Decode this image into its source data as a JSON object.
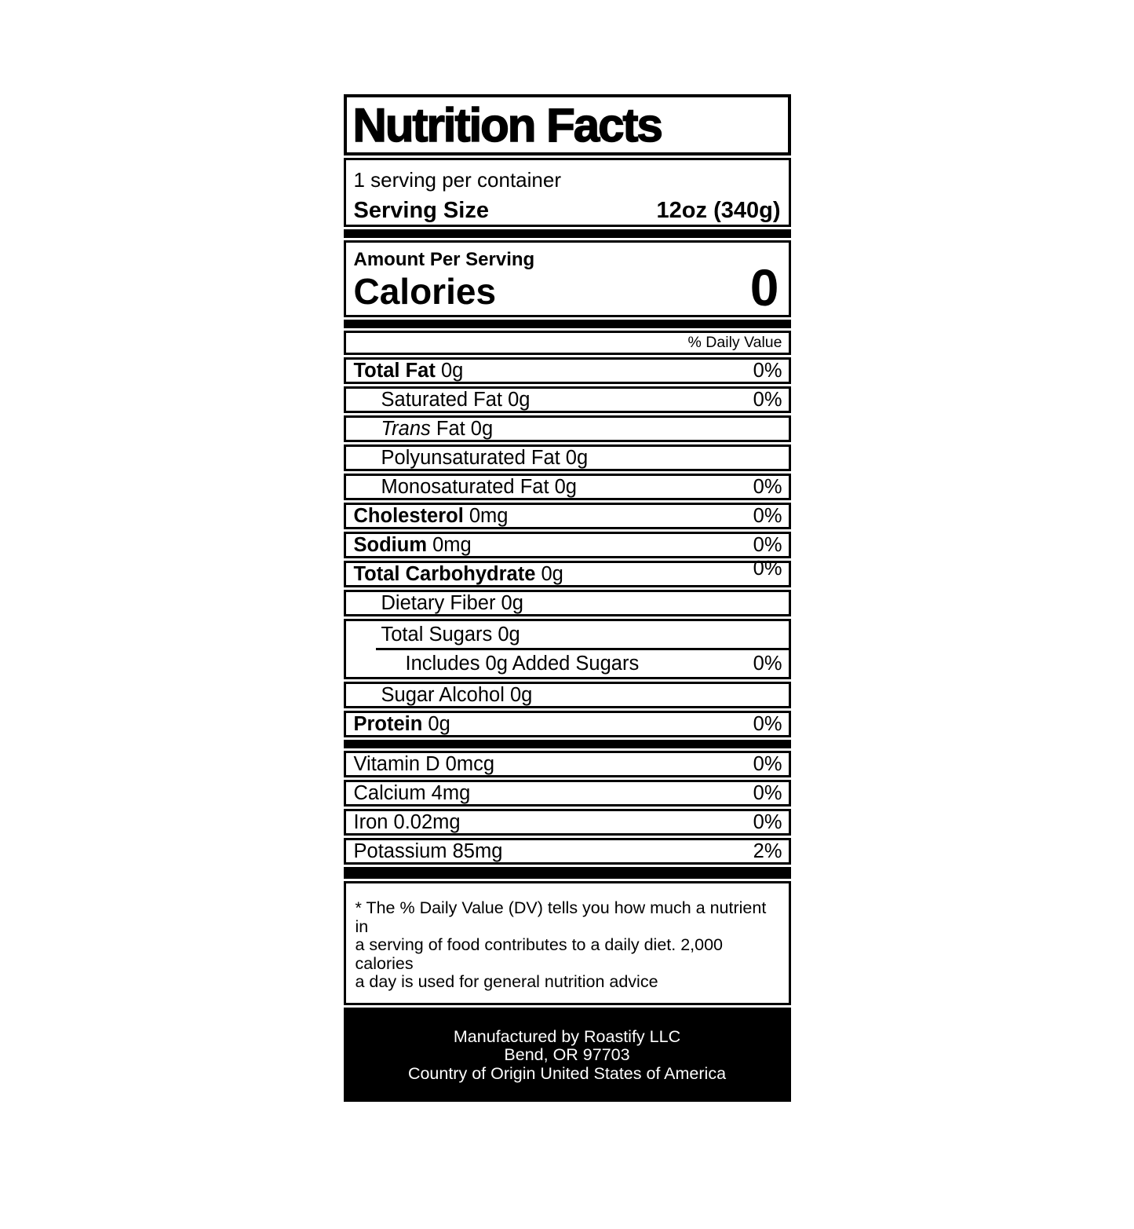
{
  "colors": {
    "text": "#000000",
    "background": "#ffffff",
    "footer_background": "#000000",
    "footer_text": "#ffffff"
  },
  "label": {
    "title": "Nutrition Facts",
    "servings_per_container": "1 serving per container",
    "serving_size": {
      "label": "Serving Size",
      "value": "12oz (340g)"
    },
    "amount_per_serving": "Amount Per Serving",
    "calories": {
      "label": "Calories",
      "value": "0"
    },
    "daily_value_header": "% Daily Value",
    "rows": [
      {
        "b": "Total Fat",
        "r": " 0g",
        "p": "0%"
      },
      {
        "r": "Saturated Fat 0g",
        "p": "0%"
      },
      {
        "i": "Trans",
        "r": " Fat 0g"
      },
      {
        "r": "Polyunsaturated Fat 0g"
      },
      {
        "r": "Monosaturated Fat 0g",
        "p": "0%"
      },
      {
        "b": "Cholesterol",
        "r": " 0mg",
        "p": "0%"
      },
      {
        "b": "Sodium",
        "r": " 0mg",
        "p": "0%"
      },
      {
        "b": "Total Carbohydrate",
        "r": " 0g",
        "p": "0%"
      },
      {
        "r": "Dietary Fiber 0g"
      },
      {
        "r": "Total Sugars 0g"
      },
      {
        "r": "Includes 0g Added Sugars",
        "p": "0%"
      },
      {
        "r": "Sugar Alcohol 0g"
      },
      {
        "b": "Protein",
        "r": " 0g",
        "p": "0%"
      },
      {
        "r": "Vitamin D 0mcg",
        "p": "0%"
      },
      {
        "r": "Calcium 4mg",
        "p": "0%"
      },
      {
        "r": "Iron 0.02mg",
        "p": "0%"
      },
      {
        "r": "Potassium 85mg",
        "p": "2%"
      }
    ],
    "footnote_lines": [
      "* The % Daily Value (DV) tells you how much a nutrient in",
      "a serving of food contributes to a daily diet. 2,000 calories",
      "a day is used for general nutrition advice"
    ],
    "footer_lines": [
      "Manufactured by Roastify LLC",
      "Bend, OR 97703",
      "Country of Origin United States of America"
    ]
  }
}
